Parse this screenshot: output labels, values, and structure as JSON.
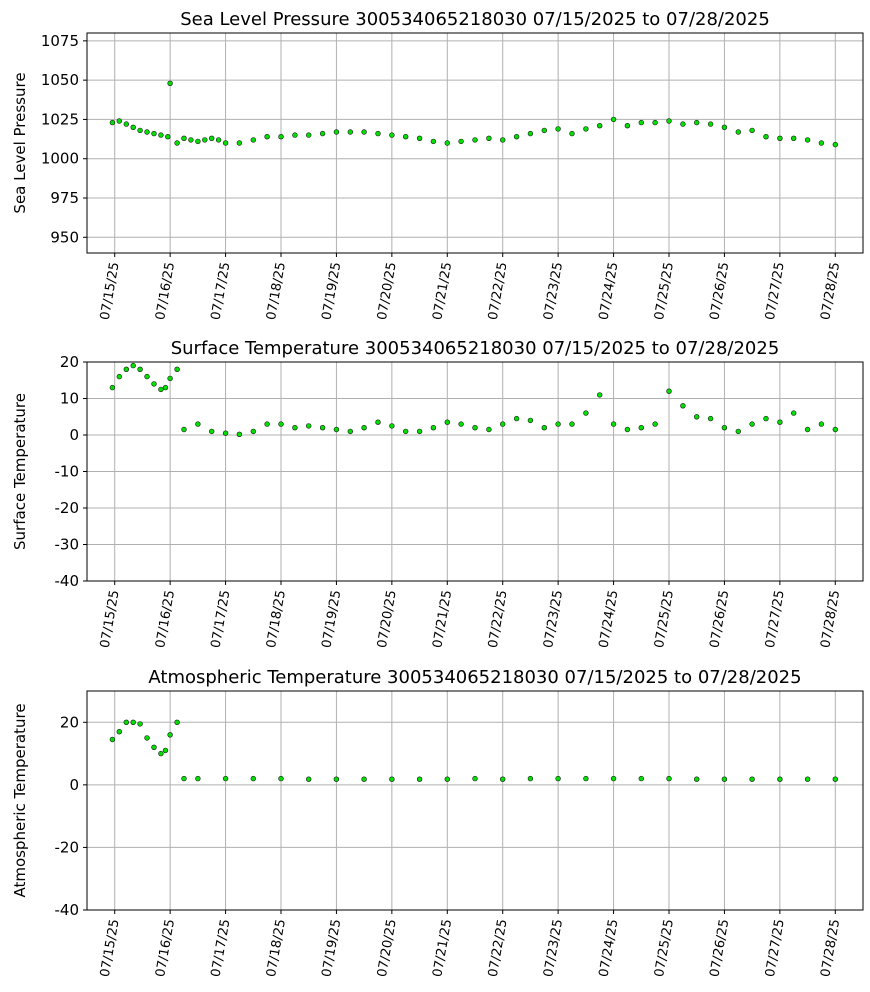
{
  "colors": {
    "marker_fill": "#00e000",
    "marker_edge": "#1a1a1a",
    "grid": "#b0b0b0"
  },
  "chart_data": [
    {
      "type": "scatter",
      "title": "Sea Level Pressure 300534065218030  07/15/2025 to 07/28/2025",
      "xlabel": "",
      "ylabel": "Sea Level Pressure",
      "grid": true,
      "ylim": [
        940,
        1080
      ],
      "xlim": [
        "2025-07-14T12:00",
        "2025-07-28T12:00"
      ],
      "yticks": [
        950,
        975,
        1000,
        1025,
        1050,
        1075
      ],
      "xticks": [
        "07/15/25",
        "07/16/25",
        "07/17/25",
        "07/18/25",
        "07/19/25",
        "07/20/25",
        "07/21/25",
        "07/22/25",
        "07/23/25",
        "07/24/25",
        "07/25/25",
        "07/26/25",
        "07/27/25",
        "07/28/25"
      ],
      "series": [
        {
          "x": [
            "2025-07-14T23:00",
            "2025-07-15T02:00",
            "2025-07-15T05:00",
            "2025-07-15T08:00",
            "2025-07-15T11:00",
            "2025-07-15T14:00",
            "2025-07-15T17:00",
            "2025-07-15T20:00",
            "2025-07-15T23:00",
            "2025-07-16T00:00",
            "2025-07-16T03:00",
            "2025-07-16T06:00",
            "2025-07-16T09:00",
            "2025-07-16T12:00",
            "2025-07-16T15:00",
            "2025-07-16T18:00",
            "2025-07-16T21:00",
            "2025-07-17T00:00",
            "2025-07-17T06:00",
            "2025-07-17T12:00",
            "2025-07-17T18:00",
            "2025-07-18T00:00",
            "2025-07-18T06:00",
            "2025-07-18T12:00",
            "2025-07-18T18:00",
            "2025-07-19T00:00",
            "2025-07-19T06:00",
            "2025-07-19T12:00",
            "2025-07-19T18:00",
            "2025-07-20T00:00",
            "2025-07-20T06:00",
            "2025-07-20T12:00",
            "2025-07-20T18:00",
            "2025-07-21T00:00",
            "2025-07-21T06:00",
            "2025-07-21T12:00",
            "2025-07-21T18:00",
            "2025-07-22T00:00",
            "2025-07-22T06:00",
            "2025-07-22T12:00",
            "2025-07-22T18:00",
            "2025-07-23T00:00",
            "2025-07-23T06:00",
            "2025-07-23T12:00",
            "2025-07-23T18:00",
            "2025-07-24T00:00",
            "2025-07-24T06:00",
            "2025-07-24T12:00",
            "2025-07-24T18:00",
            "2025-07-25T00:00",
            "2025-07-25T06:00",
            "2025-07-25T12:00",
            "2025-07-25T18:00",
            "2025-07-26T00:00",
            "2025-07-26T06:00",
            "2025-07-26T12:00",
            "2025-07-26T18:00",
            "2025-07-27T00:00",
            "2025-07-27T06:00",
            "2025-07-27T12:00",
            "2025-07-27T18:00",
            "2025-07-28T00:00"
          ],
          "y": [
            1023,
            1024,
            1022,
            1020,
            1018,
            1017,
            1016,
            1015,
            1014,
            1048,
            1010,
            1013,
            1012,
            1011,
            1012,
            1013,
            1012,
            1010,
            1010,
            1012,
            1014,
            1014,
            1015,
            1015,
            1016,
            1017,
            1017,
            1017,
            1016,
            1015,
            1014,
            1013,
            1011,
            1010,
            1011,
            1012,
            1013,
            1012,
            1014,
            1016,
            1018,
            1019,
            1016,
            1019,
            1021,
            1025,
            1021,
            1023,
            1023,
            1024,
            1022,
            1023,
            1022,
            1020,
            1017,
            1018,
            1014,
            1013,
            1013,
            1012,
            1010,
            1009
          ]
        }
      ]
    },
    {
      "type": "scatter",
      "title": "Surface Temperature 300534065218030  07/15/2025 to 07/28/2025",
      "xlabel": "",
      "ylabel": "Surface Temperature",
      "grid": true,
      "ylim": [
        -40,
        20
      ],
      "xlim": [
        "2025-07-14T12:00",
        "2025-07-28T12:00"
      ],
      "yticks": [
        -40,
        -30,
        -20,
        -10,
        0,
        10,
        20
      ],
      "xticks": [
        "07/15/25",
        "07/16/25",
        "07/17/25",
        "07/18/25",
        "07/19/25",
        "07/20/25",
        "07/21/25",
        "07/22/25",
        "07/23/25",
        "07/24/25",
        "07/25/25",
        "07/26/25",
        "07/27/25",
        "07/28/25"
      ],
      "series": [
        {
          "x": [
            "2025-07-14T23:00",
            "2025-07-15T02:00",
            "2025-07-15T05:00",
            "2025-07-15T08:00",
            "2025-07-15T11:00",
            "2025-07-15T14:00",
            "2025-07-15T17:00",
            "2025-07-15T20:00",
            "2025-07-15T22:00",
            "2025-07-16T00:00",
            "2025-07-16T03:00",
            "2025-07-16T06:00",
            "2025-07-16T12:00",
            "2025-07-16T18:00",
            "2025-07-17T00:00",
            "2025-07-17T06:00",
            "2025-07-17T12:00",
            "2025-07-17T18:00",
            "2025-07-18T00:00",
            "2025-07-18T06:00",
            "2025-07-18T12:00",
            "2025-07-18T18:00",
            "2025-07-19T00:00",
            "2025-07-19T06:00",
            "2025-07-19T12:00",
            "2025-07-19T18:00",
            "2025-07-20T00:00",
            "2025-07-20T06:00",
            "2025-07-20T12:00",
            "2025-07-20T18:00",
            "2025-07-21T00:00",
            "2025-07-21T06:00",
            "2025-07-21T12:00",
            "2025-07-21T18:00",
            "2025-07-22T00:00",
            "2025-07-22T06:00",
            "2025-07-22T12:00",
            "2025-07-22T18:00",
            "2025-07-23T00:00",
            "2025-07-23T06:00",
            "2025-07-23T12:00",
            "2025-07-23T18:00",
            "2025-07-24T00:00",
            "2025-07-24T06:00",
            "2025-07-24T12:00",
            "2025-07-24T18:00",
            "2025-07-25T00:00",
            "2025-07-25T06:00",
            "2025-07-25T12:00",
            "2025-07-25T18:00",
            "2025-07-26T00:00",
            "2025-07-26T06:00",
            "2025-07-26T12:00",
            "2025-07-26T18:00",
            "2025-07-27T00:00",
            "2025-07-27T06:00",
            "2025-07-27T12:00",
            "2025-07-27T18:00",
            "2025-07-28T00:00"
          ],
          "y": [
            13,
            16,
            18,
            19,
            18,
            16,
            14,
            12.5,
            13,
            15.5,
            18,
            1.5,
            3,
            1,
            0.5,
            0.2,
            1,
            3,
            3,
            2,
            2.5,
            2,
            1.5,
            1,
            2,
            3.5,
            2.5,
            1,
            1,
            2,
            3.5,
            3,
            2,
            1.5,
            3,
            4.5,
            4,
            2,
            3,
            3,
            6,
            11,
            3,
            1.5,
            2,
            3,
            12,
            8,
            5,
            4.5,
            2,
            1,
            3,
            4.5,
            3.5,
            6,
            1.5,
            3,
            1.5
          ]
        }
      ]
    },
    {
      "type": "scatter",
      "title": "Atmospheric Temperature 300534065218030  07/15/2025 to 07/28/2025",
      "xlabel": "",
      "ylabel": "Atmospheric Temperature",
      "grid": true,
      "ylim": [
        -40,
        30
      ],
      "xlim": [
        "2025-07-14T12:00",
        "2025-07-28T12:00"
      ],
      "yticks": [
        -40,
        -20,
        0,
        20
      ],
      "xticks": [
        "07/15/25",
        "07/16/25",
        "07/17/25",
        "07/18/25",
        "07/19/25",
        "07/20/25",
        "07/21/25",
        "07/22/25",
        "07/23/25",
        "07/24/25",
        "07/25/25",
        "07/26/25",
        "07/27/25",
        "07/28/25"
      ],
      "series": [
        {
          "x": [
            "2025-07-14T23:00",
            "2025-07-15T02:00",
            "2025-07-15T05:00",
            "2025-07-15T08:00",
            "2025-07-15T11:00",
            "2025-07-15T14:00",
            "2025-07-15T17:00",
            "2025-07-15T20:00",
            "2025-07-15T22:00",
            "2025-07-16T00:00",
            "2025-07-16T03:00",
            "2025-07-16T06:00",
            "2025-07-16T12:00",
            "2025-07-17T00:00",
            "2025-07-17T12:00",
            "2025-07-18T00:00",
            "2025-07-18T12:00",
            "2025-07-19T00:00",
            "2025-07-19T12:00",
            "2025-07-20T00:00",
            "2025-07-20T12:00",
            "2025-07-21T00:00",
            "2025-07-21T12:00",
            "2025-07-22T00:00",
            "2025-07-22T12:00",
            "2025-07-23T00:00",
            "2025-07-23T12:00",
            "2025-07-24T00:00",
            "2025-07-24T12:00",
            "2025-07-25T00:00",
            "2025-07-25T12:00",
            "2025-07-26T00:00",
            "2025-07-26T12:00",
            "2025-07-27T00:00",
            "2025-07-27T12:00",
            "2025-07-28T00:00"
          ],
          "y": [
            14.5,
            17,
            20,
            20,
            19.5,
            15,
            12,
            10,
            11,
            16,
            20,
            2,
            2,
            2,
            2,
            2,
            1.8,
            1.8,
            1.8,
            1.8,
            1.8,
            1.8,
            2,
            1.8,
            2,
            2,
            2,
            2,
            2,
            2,
            1.8,
            1.8,
            1.8,
            1.8,
            1.8,
            1.8
          ]
        }
      ]
    }
  ]
}
